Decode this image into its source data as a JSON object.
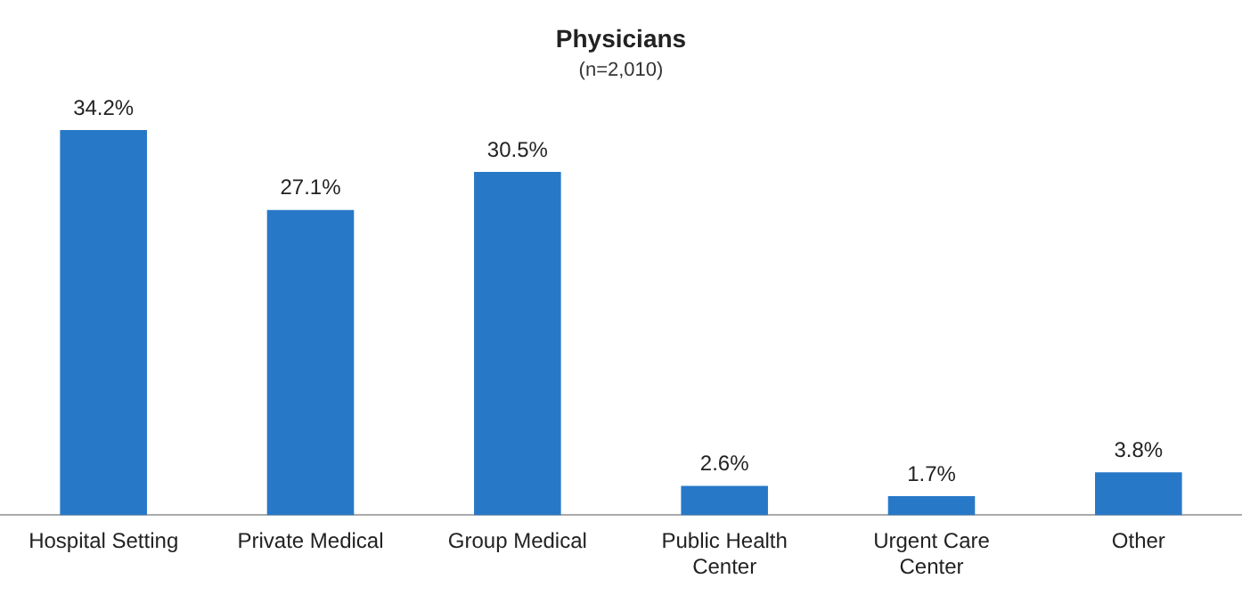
{
  "chart_data": {
    "type": "bar",
    "title": "Physicians",
    "subtitle": "(n=2,010)",
    "categories": [
      "Hospital Setting",
      "Private Medical",
      "Group Medical",
      "Public Health\nCenter",
      "Urgent Care\nCenter",
      "Other"
    ],
    "values": [
      34.2,
      27.1,
      30.5,
      2.6,
      1.7,
      3.8
    ],
    "value_labels": [
      "34.2%",
      "27.1%",
      "30.5%",
      "2.6%",
      "1.7%",
      "3.8%"
    ],
    "color": "#2878c8",
    "grid": false,
    "legend": false
  }
}
